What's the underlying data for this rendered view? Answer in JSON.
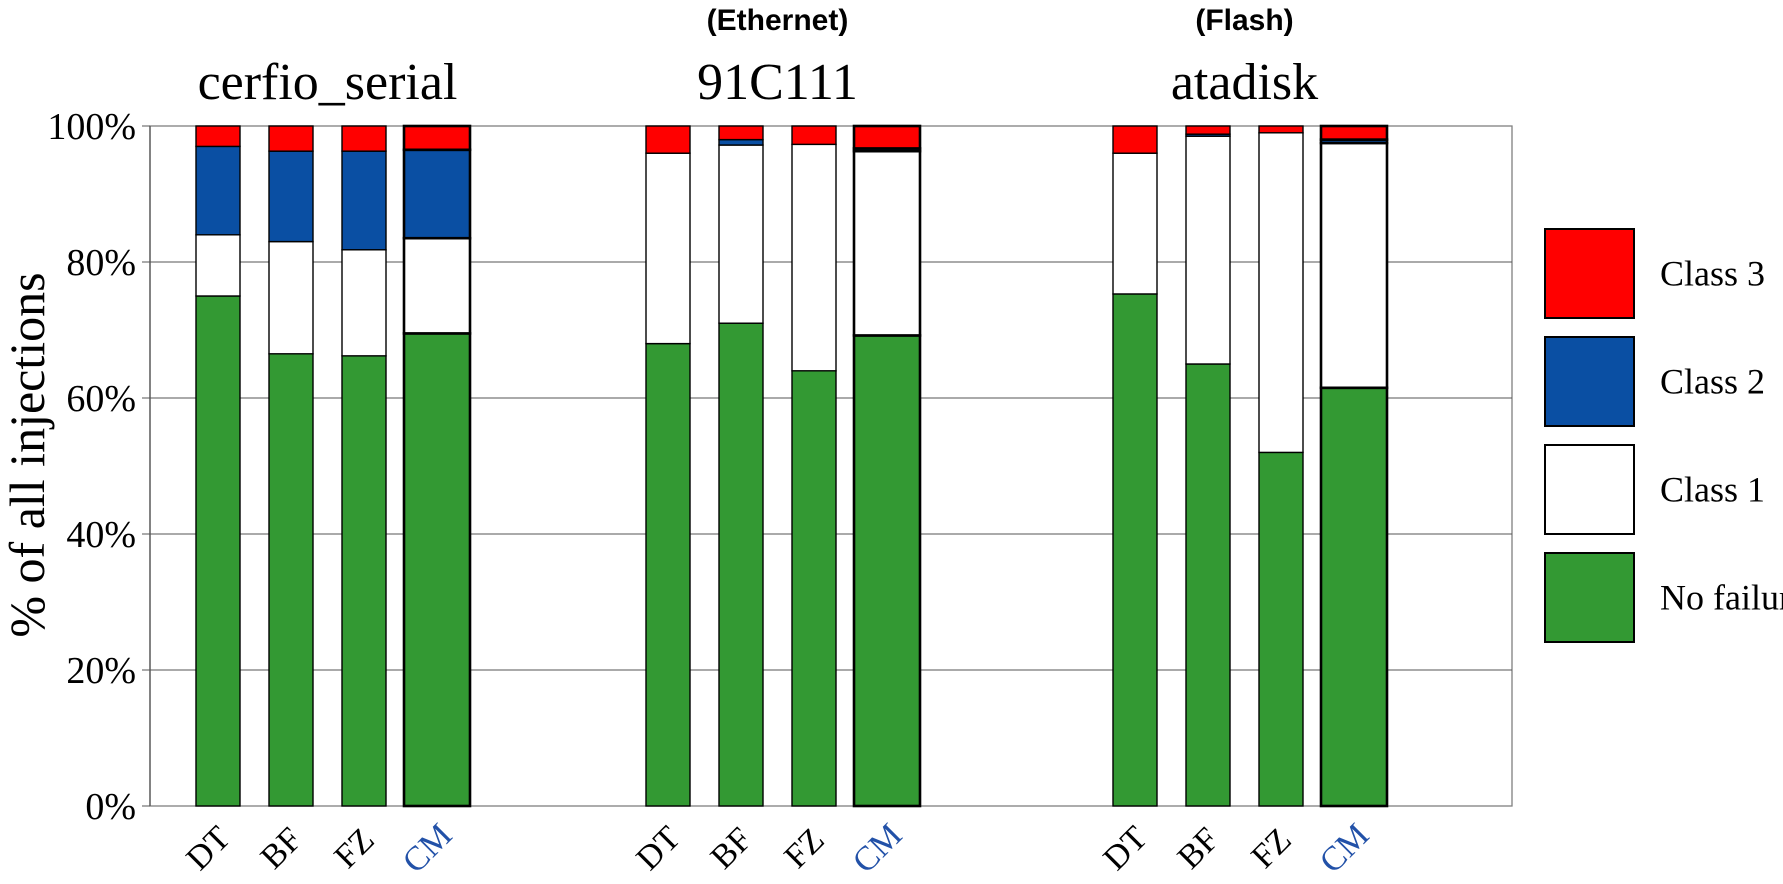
{
  "chart_data": {
    "type": "bar",
    "stacked": true,
    "percent": true,
    "ylabel": "% of all injections",
    "ylim": [
      0,
      100
    ],
    "yticks": [
      "0%",
      "20%",
      "40%",
      "60%",
      "80%",
      "100%"
    ],
    "grid": true,
    "legend_position": "right",
    "categories": [
      "DT",
      "BF",
      "FZ",
      "CM"
    ],
    "highlight_category": "CM",
    "colors": {
      "No failure": "#339933",
      "Class 1": "#ffffff",
      "Class 2": "#0a4fa3",
      "Class 3": "#ff0000",
      "highlight_label": "#2251a8"
    },
    "legend": [
      "Class 3",
      "Class 2",
      "Class 1",
      "No failure"
    ],
    "groups": [
      {
        "title": "cerfio_serial",
        "subtitle": "",
        "series": [
          {
            "name": "No failure",
            "values": [
              75,
              66.5,
              66.2,
              69.5
            ]
          },
          {
            "name": "Class 1",
            "values": [
              9,
              16.5,
              15.6,
              14
            ]
          },
          {
            "name": "Class 2",
            "values": [
              13,
              13.3,
              14.5,
              13
            ]
          },
          {
            "name": "Class 3",
            "values": [
              3,
              3.7,
              3.7,
              3.5
            ]
          }
        ]
      },
      {
        "title": "91C111",
        "subtitle": "(Ethernet)",
        "series": [
          {
            "name": "No failure",
            "values": [
              68,
              71,
              64,
              69.2
            ]
          },
          {
            "name": "Class 1",
            "values": [
              28,
              26.2,
              33.3,
              27.1
            ]
          },
          {
            "name": "Class 2",
            "values": [
              0,
              0.8,
              0,
              0.4
            ]
          },
          {
            "name": "Class 3",
            "values": [
              4,
              2,
              2.7,
              3.3
            ]
          }
        ]
      },
      {
        "title": "atadisk",
        "subtitle": "(Flash)",
        "series": [
          {
            "name": "No failure",
            "values": [
              75.3,
              65,
              52,
              61.5
            ]
          },
          {
            "name": "Class 1",
            "values": [
              20.7,
              33.5,
              47,
              36
            ]
          },
          {
            "name": "Class 2",
            "values": [
              0,
              0.3,
              0,
              0.5
            ]
          },
          {
            "name": "Class 3",
            "values": [
              4,
              1.2,
              1,
              2
            ]
          }
        ]
      }
    ]
  }
}
